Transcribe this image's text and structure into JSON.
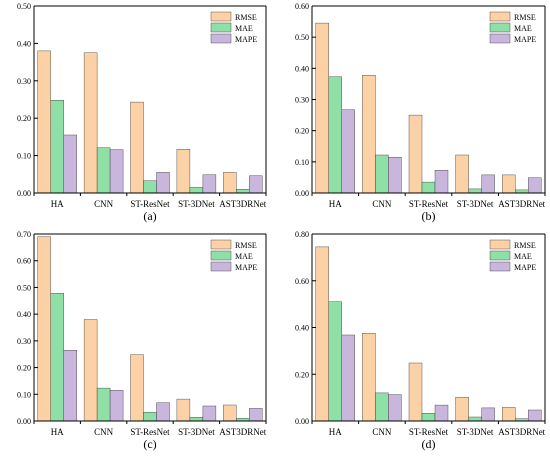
{
  "colors": {
    "RMSE": "#fcd1a6",
    "MAE": "#8ee0a6",
    "MAPE": "#c9b6dd",
    "bar_stroke": "#333333",
    "axis": "#000000"
  },
  "chart_data": [
    {
      "type": "bar",
      "panel_label": "(a)",
      "categories": [
        "HA",
        "CNN",
        "ST-ResNet",
        "ST-3DNet",
        "AST3DRNet"
      ],
      "series": [
        {
          "name": "RMSE",
          "values": [
            0.38,
            0.375,
            0.243,
            0.117,
            0.055
          ]
        },
        {
          "name": "MAE",
          "values": [
            0.248,
            0.121,
            0.033,
            0.015,
            0.01
          ]
        },
        {
          "name": "MAPE",
          "values": [
            0.155,
            0.116,
            0.055,
            0.049,
            0.046
          ]
        }
      ],
      "ylim": [
        0,
        0.5
      ],
      "yticks": [
        "0.00",
        "0.10",
        "0.20",
        "0.30",
        "0.40",
        "0.50"
      ],
      "ytick_values": [
        0,
        0.1,
        0.2,
        0.3,
        0.4,
        0.5
      ],
      "legend_position": "top-right",
      "grid": false
    },
    {
      "type": "bar",
      "panel_label": "(b)",
      "categories": [
        "HA",
        "CNN",
        "ST-ResNet",
        "ST-3DNet",
        "AST3DRNet"
      ],
      "series": [
        {
          "name": "RMSE",
          "values": [
            0.545,
            0.378,
            0.25,
            0.122,
            0.058
          ]
        },
        {
          "name": "MAE",
          "values": [
            0.373,
            0.122,
            0.035,
            0.013,
            0.01
          ]
        },
        {
          "name": "MAPE",
          "values": [
            0.267,
            0.115,
            0.073,
            0.058,
            0.049
          ]
        }
      ],
      "ylim": [
        0,
        0.6
      ],
      "yticks": [
        "0.00",
        "0.10",
        "0.20",
        "0.30",
        "0.40",
        "0.50",
        "0.60"
      ],
      "ytick_values": [
        0,
        0.1,
        0.2,
        0.3,
        0.4,
        0.5,
        0.6
      ],
      "legend_position": "top-right",
      "grid": false
    },
    {
      "type": "bar",
      "panel_label": "(c)",
      "categories": [
        "HA",
        "CNN",
        "ST-ResNet",
        "ST-3DNet",
        "AST3DRNet"
      ],
      "series": [
        {
          "name": "RMSE",
          "values": [
            0.69,
            0.38,
            0.248,
            0.082,
            0.06
          ]
        },
        {
          "name": "MAE",
          "values": [
            0.478,
            0.123,
            0.033,
            0.014,
            0.01
          ]
        },
        {
          "name": "MAPE",
          "values": [
            0.265,
            0.115,
            0.068,
            0.056,
            0.047
          ]
        }
      ],
      "ylim": [
        0,
        0.7
      ],
      "yticks": [
        "0.00",
        "0.10",
        "0.20",
        "0.30",
        "0.40",
        "0.50",
        "0.60",
        "0.70"
      ],
      "ytick_values": [
        0,
        0.1,
        0.2,
        0.3,
        0.4,
        0.5,
        0.6,
        0.7
      ],
      "legend_position": "top-right",
      "grid": false
    },
    {
      "type": "bar",
      "panel_label": "(d)",
      "categories": [
        "HA",
        "CNN",
        "ST-ResNet",
        "ST-3DNet",
        "AST3DRNet"
      ],
      "series": [
        {
          "name": "RMSE",
          "values": [
            0.745,
            0.375,
            0.248,
            0.102,
            0.058
          ]
        },
        {
          "name": "MAE",
          "values": [
            0.51,
            0.12,
            0.033,
            0.017,
            0.01
          ]
        },
        {
          "name": "MAPE",
          "values": [
            0.368,
            0.113,
            0.068,
            0.056,
            0.047
          ]
        }
      ],
      "ylim": [
        0,
        0.8
      ],
      "yticks": [
        "0.00",
        "0.20",
        "0.40",
        "0.60",
        "0.80"
      ],
      "ytick_values": [
        0,
        0.2,
        0.4,
        0.6,
        0.8
      ],
      "legend_position": "top-right",
      "grid": false
    }
  ]
}
